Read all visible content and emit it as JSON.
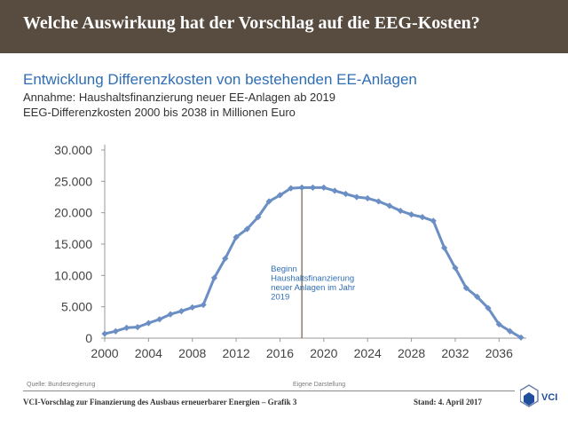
{
  "header": {
    "title": "Welche Auswirkung hat der Vorschlag auf die EEG-Kosten?"
  },
  "chart_title": "Entwicklung Differenzkosten von bestehenden EE-Anlagen",
  "subtitle_lines": [
    "Annahme: Haushaltsfinanzierung neuer EE-Anlagen ab 2019",
    "EEG-Differenzkosten 2000 bis 2038 in Millionen Euro"
  ],
  "chart_data": {
    "type": "line",
    "title": "Entwicklung Differenzkosten von bestehenden EE-Anlagen",
    "x": [
      2000,
      2001,
      2002,
      2003,
      2004,
      2005,
      2006,
      2007,
      2008,
      2009,
      2010,
      2011,
      2012,
      2013,
      2014,
      2015,
      2016,
      2017,
      2018,
      2019,
      2020,
      2021,
      2022,
      2023,
      2024,
      2025,
      2026,
      2027,
      2028,
      2029,
      2030,
      2031,
      2032,
      2033,
      2034,
      2035,
      2036,
      2037,
      2038
    ],
    "series": [
      {
        "values": [
          700,
          1100,
          1650,
          1750,
          2400,
          3000,
          3800,
          4300,
          4900,
          5300,
          9600,
          12700,
          16100,
          17400,
          19300,
          21800,
          22800,
          23900,
          24000,
          24000,
          24000,
          23500,
          23000,
          22500,
          22300,
          21800,
          21100,
          20300,
          19700,
          19300,
          18700,
          14400,
          11200,
          8000,
          6600,
          4800,
          2200,
          1100,
          100
        ]
      }
    ],
    "xlim": [
      2000,
      2038
    ],
    "ylim": [
      0,
      30000
    ],
    "xticks": [
      "2000",
      "2004",
      "2008",
      "2012",
      "2016",
      "2020",
      "2024",
      "2028",
      "2032",
      "2036"
    ],
    "yticks": [
      "0",
      "5.000",
      "10.000",
      "15.000",
      "20.000",
      "25.000",
      "30.000"
    ],
    "grid": false,
    "line_color": "#6b8fc4",
    "marker_line_x": 2018,
    "annotation": [
      "Beginn",
      "Haushaltsfinanzierung",
      "neuer Anlagen im Jahr",
      "2019"
    ]
  },
  "footer": {
    "source": "Quelle: Bundesregierung",
    "note": "Eigene Darstellung",
    "left": "VCI-Vorschlag zur Finanzierung des Ausbaus erneuerbarer Energien – Grafik 3",
    "right": "Stand: 4. April 2017",
    "logo_text": "VCI"
  }
}
